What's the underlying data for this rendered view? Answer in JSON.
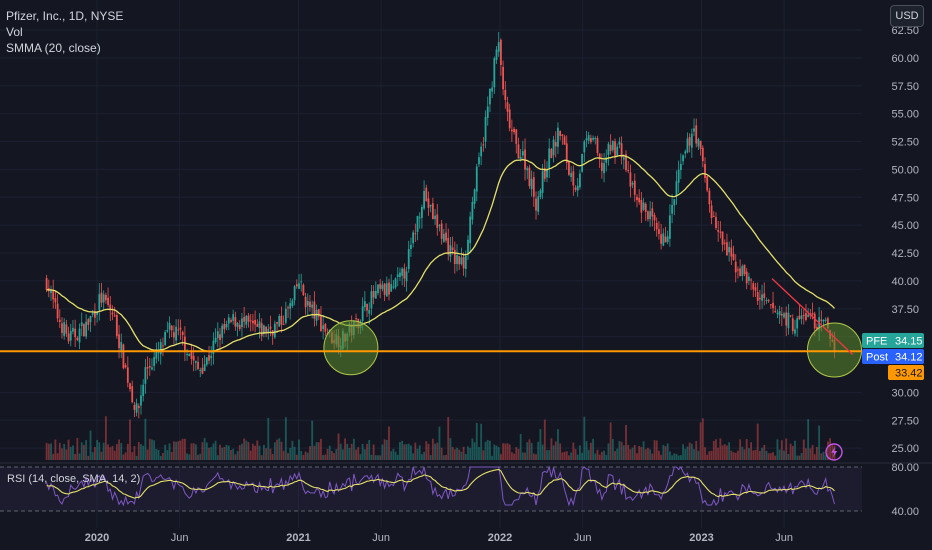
{
  "header": {
    "title": "Pfizer, Inc., 1D, NYSE",
    "vol_label": "Vol",
    "smma_label": "SMMA (20, close)",
    "currency": "USD"
  },
  "rsi_panel": {
    "label": "RSI (14, close, SMA, 14, 2)",
    "upper_level": "80.00",
    "lower_level": "40.00"
  },
  "badges": {
    "ticker": "PFE",
    "last_price": "34.15",
    "post_label": "Post",
    "post_price": "34.12",
    "level_price": "33.42"
  },
  "colors": {
    "background": "#141722",
    "up_candle": "#26a69a",
    "down_candle": "#ef5350",
    "smma": "#e5e06a",
    "horizontal_level": "#ff9800",
    "trendline": "#f23645",
    "circle_fill": "#5b8a2a",
    "circle_stroke": "#b0c94a",
    "rsi_line": "#7e57c2",
    "rsi_ma": "#e5e06a",
    "ticker_badge": "#26a69a",
    "post_badge": "#2962ff",
    "level_badge": "#ff9800",
    "price_axis_text": "#b2b5be"
  },
  "chart_data": {
    "type": "line",
    "series": [
      {
        "values": [
          [
            2019.75,
            40
          ],
          [
            2019.8,
            37
          ],
          [
            2019.86,
            34.8
          ],
          [
            2019.95,
            36
          ],
          [
            2020.02,
            38.5
          ],
          [
            2020.08,
            37
          ],
          [
            2020.13,
            33
          ],
          [
            2020.17,
            30
          ],
          [
            2020.2,
            28
          ],
          [
            2020.24,
            32
          ],
          [
            2020.3,
            33.3
          ],
          [
            2020.36,
            35.5
          ],
          [
            2020.42,
            35
          ],
          [
            2020.47,
            33
          ],
          [
            2020.5,
            32
          ],
          [
            2020.55,
            33
          ],
          [
            2020.6,
            35
          ],
          [
            2020.68,
            36.5
          ],
          [
            2020.75,
            36
          ],
          [
            2020.82,
            35.5
          ],
          [
            2020.9,
            36
          ],
          [
            2020.97,
            38
          ],
          [
            2021.0,
            40
          ],
          [
            2021.04,
            38
          ],
          [
            2021.1,
            36.5
          ],
          [
            2021.16,
            35
          ],
          [
            2021.22,
            34.8
          ],
          [
            2021.28,
            36
          ],
          [
            2021.34,
            38
          ],
          [
            2021.4,
            39
          ],
          [
            2021.46,
            39.2
          ],
          [
            2021.52,
            40.5
          ],
          [
            2021.56,
            43
          ],
          [
            2021.62,
            48
          ],
          [
            2021.66,
            46
          ],
          [
            2021.72,
            44
          ],
          [
            2021.77,
            42
          ],
          [
            2021.82,
            41.5
          ],
          [
            2021.87,
            48
          ],
          [
            2021.91,
            52
          ],
          [
            2021.96,
            58
          ],
          [
            2021.99,
            61.5
          ],
          [
            2022.03,
            55
          ],
          [
            2022.08,
            52
          ],
          [
            2022.12,
            51
          ],
          [
            2022.18,
            47
          ],
          [
            2022.24,
            51
          ],
          [
            2022.3,
            53.5
          ],
          [
            2022.34,
            50
          ],
          [
            2022.38,
            48.5
          ],
          [
            2022.42,
            52
          ],
          [
            2022.46,
            53
          ],
          [
            2022.5,
            50
          ],
          [
            2022.55,
            52
          ],
          [
            2022.6,
            52
          ],
          [
            2022.64,
            49
          ],
          [
            2022.68,
            47
          ],
          [
            2022.74,
            46
          ],
          [
            2022.8,
            43
          ],
          [
            2022.84,
            45
          ],
          [
            2022.88,
            49
          ],
          [
            2022.93,
            52
          ],
          [
            2022.96,
            54
          ],
          [
            2023.0,
            51
          ],
          [
            2023.05,
            46
          ],
          [
            2023.1,
            43.5
          ],
          [
            2023.16,
            41.5
          ],
          [
            2023.22,
            40.5
          ],
          [
            2023.28,
            38.5
          ],
          [
            2023.34,
            37.5
          ],
          [
            2023.4,
            37
          ],
          [
            2023.46,
            36
          ],
          [
            2023.52,
            37
          ],
          [
            2023.58,
            36
          ],
          [
            2023.62,
            36
          ],
          [
            2023.66,
            34.15
          ]
        ],
        "name": "PFE"
      }
    ],
    "x_ticks": [
      "2020",
      "Jun",
      "2021",
      "Jun",
      "2022",
      "Jun",
      "2023",
      "Jun"
    ],
    "price_ticks": [
      "62.50",
      "60.00",
      "57.50",
      "55.00",
      "52.50",
      "50.00",
      "47.50",
      "45.00",
      "42.50",
      "40.00",
      "37.50",
      "35.00",
      "30.00",
      "27.50",
      "25.00"
    ],
    "rsi_ticks": [
      "80.00",
      "40.00"
    ],
    "annotations": {
      "horizontal_level": 33.42,
      "trendline": [
        [
          2023.35,
          40.2
        ],
        [
          2023.75,
          33.4
        ]
      ]
    }
  }
}
